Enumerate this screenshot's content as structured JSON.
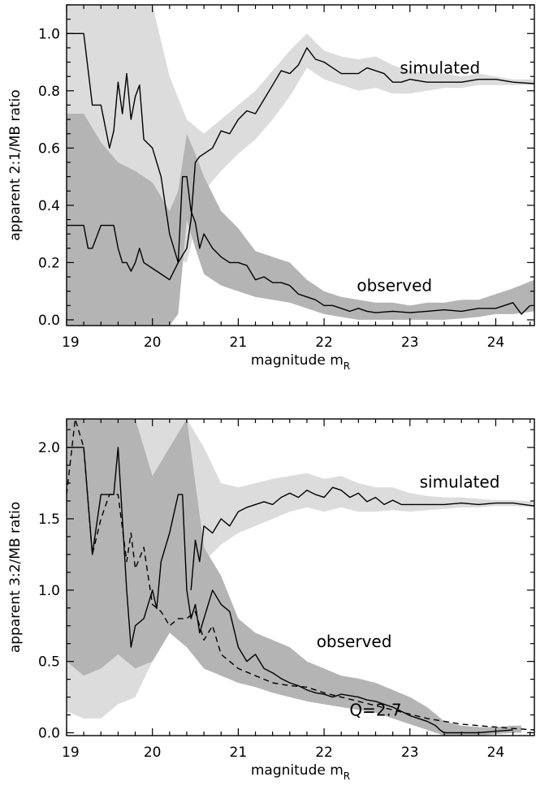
{
  "chart_data": [
    {
      "type": "line",
      "xlabel": "magnitude m",
      "xlabel_sub": "R",
      "ylabel": "apparent 2:1/MB ratio",
      "xlim": [
        19,
        24.45
      ],
      "ylim": [
        -0.02,
        1.1
      ],
      "x_ticks": [
        19,
        20,
        21,
        22,
        23,
        24
      ],
      "y_ticks": [
        0.0,
        0.2,
        0.4,
        0.6,
        0.8,
        1.0
      ],
      "x_ticklabels": [
        "19",
        "20",
        "21",
        "22",
        "23",
        "24"
      ],
      "y_ticklabels": [
        "0.0",
        "0.2",
        "0.4",
        "0.6",
        "0.8",
        "1.0"
      ],
      "grid": false,
      "annotations": [
        {
          "text": "simulated",
          "x": 23.35,
          "y": 0.86
        },
        {
          "text": "observed",
          "x": 22.82,
          "y": 0.1
        }
      ],
      "series": [
        {
          "style": "solid",
          "x": [
            19.0,
            19.1,
            19.2,
            19.3,
            19.4,
            19.5,
            19.55,
            19.6,
            19.65,
            19.7,
            19.75,
            19.8,
            19.85,
            19.9,
            20.0,
            20.1,
            20.2,
            20.3,
            20.4,
            20.45,
            20.5,
            20.55,
            20.6,
            20.7,
            20.8,
            20.9,
            21.0,
            21.1,
            21.2,
            21.3,
            21.4,
            21.5,
            21.6,
            21.7,
            21.8,
            21.9,
            22.0,
            22.1,
            22.2,
            22.3,
            22.4,
            22.5,
            22.6,
            22.7,
            22.8,
            22.9,
            23.0,
            23.2,
            23.4,
            23.6,
            23.8,
            24.0,
            24.2,
            24.45
          ],
          "y": [
            1.0,
            1.0,
            1.0,
            0.75,
            0.75,
            0.6,
            0.66,
            0.83,
            0.72,
            0.86,
            0.7,
            0.78,
            0.82,
            0.63,
            0.6,
            0.5,
            0.3,
            0.2,
            0.25,
            0.35,
            0.55,
            0.57,
            0.58,
            0.6,
            0.66,
            0.65,
            0.7,
            0.73,
            0.72,
            0.77,
            0.82,
            0.87,
            0.86,
            0.89,
            0.95,
            0.91,
            0.9,
            0.88,
            0.86,
            0.86,
            0.86,
            0.88,
            0.87,
            0.86,
            0.83,
            0.83,
            0.84,
            0.83,
            0.83,
            0.83,
            0.84,
            0.84,
            0.83,
            0.825
          ]
        },
        {
          "style": "solid",
          "x": [
            19.0,
            19.2,
            19.25,
            19.3,
            19.4,
            19.5,
            19.55,
            19.6,
            19.65,
            19.7,
            19.75,
            19.8,
            19.85,
            19.9,
            20.0,
            20.1,
            20.2,
            20.3,
            20.35,
            20.4,
            20.45,
            20.5,
            20.55,
            20.6,
            20.7,
            20.8,
            20.9,
            21.0,
            21.1,
            21.2,
            21.3,
            21.4,
            21.5,
            21.6,
            21.7,
            21.8,
            21.9,
            22.0,
            22.1,
            22.2,
            22.3,
            22.4,
            22.5,
            22.6,
            22.8,
            23.0,
            23.2,
            23.4,
            23.6,
            23.8,
            24.0,
            24.2,
            24.3,
            24.4
          ],
          "y": [
            0.33,
            0.33,
            0.25,
            0.25,
            0.33,
            0.33,
            0.33,
            0.25,
            0.2,
            0.2,
            0.17,
            0.2,
            0.25,
            0.2,
            0.18,
            0.16,
            0.14,
            0.2,
            0.5,
            0.5,
            0.38,
            0.34,
            0.25,
            0.3,
            0.25,
            0.22,
            0.2,
            0.2,
            0.19,
            0.14,
            0.15,
            0.13,
            0.13,
            0.12,
            0.09,
            0.08,
            0.07,
            0.05,
            0.05,
            0.04,
            0.03,
            0.04,
            0.03,
            0.025,
            0.03,
            0.025,
            0.03,
            0.035,
            0.03,
            0.04,
            0.04,
            0.06,
            0.02,
            0.05
          ]
        }
      ],
      "bands": [
        {
          "shade": "light",
          "x": [
            19.0,
            19.2,
            19.4,
            19.6,
            19.8,
            20.0,
            20.2,
            20.4,
            20.6,
            20.8,
            21.0,
            21.2,
            21.4,
            21.6,
            21.8,
            22.0,
            22.2,
            22.4,
            22.6,
            22.8,
            23.0,
            23.2,
            23.4,
            23.6,
            23.8,
            24.0,
            24.2,
            24.45
          ],
          "lower": [
            0.72,
            0.55,
            0.45,
            0.45,
            0.42,
            0.3,
            0.22,
            0.2,
            0.45,
            0.52,
            0.58,
            0.63,
            0.7,
            0.78,
            0.88,
            0.84,
            0.82,
            0.8,
            0.81,
            0.79,
            0.79,
            0.8,
            0.81,
            0.81,
            0.82,
            0.82,
            0.82,
            0.82
          ],
          "upper": [
            1.1,
            1.1,
            1.1,
            1.1,
            1.1,
            1.1,
            0.85,
            0.7,
            0.65,
            0.7,
            0.75,
            0.8,
            0.87,
            0.94,
            1.0,
            0.94,
            0.92,
            0.91,
            0.92,
            0.89,
            0.87,
            0.86,
            0.86,
            0.85,
            0.86,
            0.85,
            0.84,
            0.84
          ]
        },
        {
          "shade": "dark",
          "x": [
            19.0,
            19.2,
            19.4,
            19.6,
            19.8,
            20.0,
            20.2,
            20.3,
            20.4,
            20.5,
            20.6,
            20.8,
            21.0,
            21.2,
            21.4,
            21.6,
            21.8,
            22.0,
            22.2,
            22.4,
            22.6,
            22.8,
            23.0,
            23.2,
            23.4,
            23.6,
            23.8,
            24.0,
            24.2,
            24.45
          ],
          "lower": [
            -0.02,
            -0.02,
            -0.02,
            -0.02,
            -0.02,
            -0.02,
            -0.02,
            0.02,
            0.35,
            0.25,
            0.16,
            0.12,
            0.1,
            0.08,
            0.07,
            0.06,
            0.04,
            0.02,
            0.01,
            0.0,
            0.0,
            0.0,
            0.0,
            0.0,
            0.0,
            0.005,
            0.01,
            0.02,
            0.02,
            0.03
          ],
          "upper": [
            0.72,
            0.72,
            0.62,
            0.55,
            0.52,
            0.48,
            0.38,
            0.45,
            0.65,
            0.58,
            0.5,
            0.38,
            0.32,
            0.24,
            0.22,
            0.2,
            0.14,
            0.1,
            0.08,
            0.07,
            0.06,
            0.06,
            0.05,
            0.06,
            0.06,
            0.07,
            0.07,
            0.09,
            0.11,
            0.14
          ]
        }
      ]
    },
    {
      "type": "line",
      "xlabel": "magnitude m",
      "xlabel_sub": "R",
      "ylabel": "apparent 3:2/MB ratio",
      "xlim": [
        19,
        24.45
      ],
      "ylim": [
        -0.02,
        2.2
      ],
      "x_ticks": [
        19,
        20,
        21,
        22,
        23,
        24
      ],
      "y_ticks": [
        0.0,
        0.5,
        1.0,
        1.5,
        2.0
      ],
      "x_ticklabels": [
        "19",
        "20",
        "21",
        "22",
        "23",
        "24"
      ],
      "y_ticklabels": [
        "0.0",
        "0.5",
        "1.0",
        "1.5",
        "2.0"
      ],
      "grid": false,
      "annotations": [
        {
          "text": "simulated",
          "x": 23.58,
          "y": 1.72
        },
        {
          "text": "observed",
          "x": 22.35,
          "y": 0.6
        },
        {
          "text": "Q=2.7",
          "x": 22.6,
          "y": 0.12
        }
      ],
      "series": [
        {
          "style": "solid",
          "x": [
            19.0,
            19.1,
            19.2,
            19.3,
            19.4,
            19.5,
            19.55,
            19.6,
            19.65,
            19.7,
            19.75,
            19.8,
            19.9,
            20.0,
            20.05,
            20.1,
            20.2,
            20.3,
            20.35,
            20.4,
            20.45,
            20.5,
            20.55,
            20.6,
            20.7,
            20.8,
            20.9,
            21.0,
            21.1,
            21.2,
            21.3,
            21.4,
            21.5,
            21.6,
            21.7,
            21.8,
            21.9,
            22.0,
            22.1,
            22.2,
            22.3,
            22.4,
            22.5,
            22.6,
            22.7,
            22.8,
            22.9,
            23.0,
            23.1,
            23.2,
            23.3,
            23.35,
            23.4,
            23.6,
            23.8,
            24.0,
            24.2
          ],
          "y": [
            2.0,
            2.0,
            2.0,
            1.25,
            1.67,
            1.67,
            1.67,
            2.0,
            1.5,
            1.0,
            0.6,
            0.75,
            0.8,
            1.0,
            0.87,
            1.2,
            1.4,
            1.67,
            1.67,
            1.0,
            0.8,
            0.9,
            0.7,
            0.8,
            1.0,
            0.9,
            0.85,
            0.6,
            0.5,
            0.55,
            0.45,
            0.42,
            0.38,
            0.35,
            0.33,
            0.3,
            0.28,
            0.27,
            0.25,
            0.27,
            0.26,
            0.25,
            0.23,
            0.22,
            0.2,
            0.18,
            0.15,
            0.12,
            0.1,
            0.08,
            0.05,
            0.02,
            0.0,
            0.0,
            0.0,
            0.01,
            0.02
          ]
        },
        {
          "style": "solid",
          "x": [
            20.45,
            20.5,
            20.55,
            20.6,
            20.7,
            20.8,
            20.9,
            21.0,
            21.1,
            21.2,
            21.3,
            21.4,
            21.5,
            21.6,
            21.7,
            21.8,
            21.9,
            22.0,
            22.1,
            22.2,
            22.3,
            22.4,
            22.5,
            22.6,
            22.7,
            22.8,
            22.9,
            23.0,
            23.2,
            23.4,
            23.6,
            23.8,
            24.0,
            24.2,
            24.45
          ],
          "y": [
            1.0,
            1.35,
            1.2,
            1.45,
            1.4,
            1.5,
            1.45,
            1.55,
            1.58,
            1.6,
            1.62,
            1.6,
            1.65,
            1.68,
            1.65,
            1.7,
            1.67,
            1.65,
            1.72,
            1.7,
            1.65,
            1.68,
            1.62,
            1.65,
            1.6,
            1.63,
            1.6,
            1.6,
            1.6,
            1.6,
            1.61,
            1.6,
            1.61,
            1.61,
            1.59
          ]
        },
        {
          "style": "dashed",
          "x": [
            19.0,
            19.1,
            19.2,
            19.3,
            19.4,
            19.5,
            19.6,
            19.7,
            19.75,
            19.8,
            19.9,
            20.0,
            20.1,
            20.2,
            20.3,
            20.4,
            20.5,
            20.6,
            20.7,
            20.8,
            20.9,
            21.0,
            21.2,
            21.4,
            21.6,
            21.8,
            22.0,
            22.2,
            22.4,
            22.6,
            22.8,
            23.0,
            23.2,
            23.4,
            23.6,
            23.8,
            24.0,
            24.2,
            24.45
          ],
          "y": [
            1.67,
            2.2,
            2.0,
            1.25,
            1.5,
            1.67,
            1.67,
            1.2,
            1.4,
            1.15,
            1.3,
            0.9,
            0.85,
            0.75,
            0.8,
            0.8,
            0.85,
            0.65,
            0.75,
            0.55,
            0.5,
            0.45,
            0.4,
            0.35,
            0.33,
            0.32,
            0.28,
            0.25,
            0.22,
            0.19,
            0.16,
            0.13,
            0.1,
            0.08,
            0.06,
            0.05,
            0.04,
            0.03,
            0.02
          ]
        }
      ],
      "bands": [
        {
          "shade": "light",
          "x": [
            19.0,
            19.2,
            19.4,
            19.6,
            19.8,
            20.0,
            20.2,
            20.4,
            20.6,
            20.8,
            21.0,
            21.2,
            21.4,
            21.6,
            21.8,
            22.0,
            22.2,
            22.4,
            22.6,
            22.8,
            23.0,
            23.2,
            23.4,
            23.6,
            23.8,
            24.0,
            24.2,
            24.45
          ],
          "lower": [
            0.15,
            0.1,
            0.1,
            0.2,
            0.25,
            0.5,
            0.7,
            0.9,
            1.2,
            1.32,
            1.4,
            1.45,
            1.5,
            1.55,
            1.58,
            1.55,
            1.58,
            1.55,
            1.55,
            1.56,
            1.55,
            1.56,
            1.57,
            1.58,
            1.58,
            1.59,
            1.59,
            1.58
          ],
          "upper": [
            2.2,
            2.2,
            2.2,
            2.2,
            2.2,
            2.2,
            2.2,
            2.2,
            2.0,
            1.75,
            1.72,
            1.75,
            1.78,
            1.8,
            1.82,
            1.78,
            1.8,
            1.75,
            1.72,
            1.72,
            1.68,
            1.66,
            1.65,
            1.65,
            1.64,
            1.63,
            1.63,
            1.62
          ]
        },
        {
          "shade": "dark",
          "x": [
            19.0,
            19.2,
            19.4,
            19.6,
            19.8,
            20.0,
            20.2,
            20.4,
            20.6,
            20.8,
            21.0,
            21.2,
            21.4,
            21.6,
            21.8,
            22.0,
            22.2,
            22.4,
            22.6,
            22.8,
            23.0,
            23.2,
            23.4,
            23.6,
            23.8,
            24.0,
            24.2,
            24.3
          ],
          "lower": [
            0.5,
            0.4,
            0.45,
            0.55,
            0.45,
            0.5,
            0.7,
            0.6,
            0.45,
            0.4,
            0.35,
            0.32,
            0.28,
            0.25,
            0.22,
            0.2,
            0.18,
            0.16,
            0.14,
            0.1,
            0.06,
            0.02,
            -0.02,
            -0.02,
            -0.02,
            -0.01,
            0.0,
            0.0
          ],
          "upper": [
            2.2,
            2.2,
            2.2,
            2.2,
            2.2,
            1.8,
            2.0,
            2.2,
            1.3,
            1.1,
            0.8,
            0.7,
            0.65,
            0.6,
            0.5,
            0.45,
            0.4,
            0.38,
            0.35,
            0.3,
            0.25,
            0.18,
            0.08,
            0.05,
            0.04,
            0.04,
            0.05,
            0.05
          ]
        }
      ]
    }
  ],
  "colors": {
    "axis": "#000000",
    "band_light": "#dcdcdc",
    "band_dark": "#b4b4b4",
    "line": "#000000"
  }
}
